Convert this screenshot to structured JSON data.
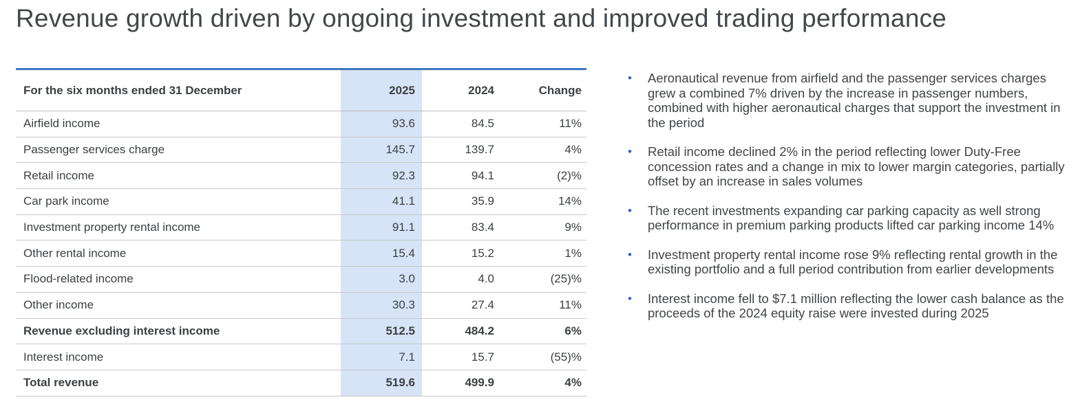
{
  "page": {
    "title": "Revenue growth driven by ongoing investment and improved trading performance"
  },
  "colors": {
    "accent_border": "#3e76c2",
    "highlight_column": "#d7e3f6",
    "row_border": "#c9c9c9",
    "table_text": "#3c4043",
    "bullet_marker": "#3565c4"
  },
  "table": {
    "header": {
      "label": "For the six months ended 31 December",
      "col_2025": "2025",
      "col_2024": "2024",
      "col_change": "Change"
    },
    "rows": [
      {
        "label": "Airfield income",
        "v2025": "93.6",
        "v2024": "84.5",
        "change": "11%",
        "bold": false
      },
      {
        "label": "Passenger services charge",
        "v2025": "145.7",
        "v2024": "139.7",
        "change": "4%",
        "bold": false
      },
      {
        "label": "Retail income",
        "v2025": "92.3",
        "v2024": "94.1",
        "change": "(2)%",
        "bold": false
      },
      {
        "label": "Car park income",
        "v2025": "41.1",
        "v2024": "35.9",
        "change": "14%",
        "bold": false
      },
      {
        "label": "Investment property rental income",
        "v2025": "91.1",
        "v2024": "83.4",
        "change": "9%",
        "bold": false
      },
      {
        "label": "Other rental income",
        "v2025": "15.4",
        "v2024": "15.2",
        "change": "1%",
        "bold": false
      },
      {
        "label": "Flood-related income",
        "v2025": "3.0",
        "v2024": "4.0",
        "change": "(25)%",
        "bold": false
      },
      {
        "label": "Other income",
        "v2025": "30.3",
        "v2024": "27.4",
        "change": "11%",
        "bold": false
      },
      {
        "label": "Revenue excluding interest income",
        "v2025": "512.5",
        "v2024": "484.2",
        "change": "6%",
        "bold": true
      },
      {
        "label": "Interest income",
        "v2025": "7.1",
        "v2024": "15.7",
        "change": "(55)%",
        "bold": false
      },
      {
        "label": "Total revenue",
        "v2025": "519.6",
        "v2024": "499.9",
        "change": "4%",
        "bold": true
      }
    ]
  },
  "bullets": {
    "marker": "•",
    "items": [
      "Aeronautical revenue from airfield and the passenger services charges grew a combined 7% driven by the increase in passenger numbers, combined with higher aeronautical charges that support the investment in the period",
      "Retail income declined 2% in the period reflecting lower Duty-Free concession rates and a change in mix to lower margin categories, partially offset by an increase in sales volumes",
      "The recent investments expanding car parking capacity as well strong performance in premium parking products lifted car parking income 14%",
      "Investment property rental income rose 9% reflecting rental growth in the existing portfolio and a full period contribution from earlier developments",
      "Interest income fell to $7.1 million reflecting the lower cash balance as the proceeds of the 2024 equity raise were invested during 2025"
    ]
  }
}
